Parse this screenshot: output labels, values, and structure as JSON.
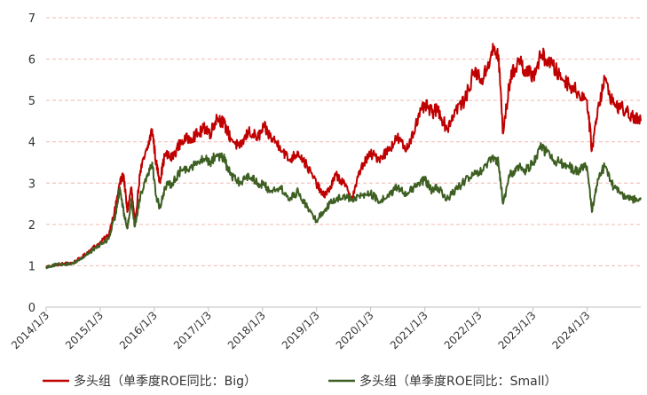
{
  "chart_data": {
    "type": "line",
    "title": "",
    "xlabel": "",
    "ylabel": "",
    "ylim": [
      0,
      7
    ],
    "yticks": [
      0,
      1,
      2,
      3,
      4,
      5,
      6,
      7
    ],
    "x_range": [
      "2014-01-03",
      "2024-12-31"
    ],
    "x_ticks": [
      "2014/1/3",
      "2015/1/3",
      "2016/1/3",
      "2017/1/3",
      "2018/1/3",
      "2019/1/3",
      "2020/1/3",
      "2021/1/3",
      "2022/1/3",
      "2023/1/3",
      "2024/1/3"
    ],
    "grid": "horizontal dashed",
    "legend_position": "bottom",
    "series": [
      {
        "name": "多头组（单季度ROE同比：Big）",
        "color": "#c00000",
        "points": [
          [
            "2014-01-03",
            0.97
          ],
          [
            "2014-03-01",
            1.02
          ],
          [
            "2014-05-01",
            1.05
          ],
          [
            "2014-07-01",
            1.07
          ],
          [
            "2014-09-01",
            1.2
          ],
          [
            "2014-11-01",
            1.4
          ],
          [
            "2015-01-01",
            1.55
          ],
          [
            "2015-03-01",
            1.75
          ],
          [
            "2015-04-15",
            2.4
          ],
          [
            "2015-05-15",
            3.0
          ],
          [
            "2015-06-10",
            3.2
          ],
          [
            "2015-07-05",
            2.3
          ],
          [
            "2015-08-01",
            2.9
          ],
          [
            "2015-08-25",
            2.0
          ],
          [
            "2015-10-01",
            3.3
          ],
          [
            "2015-11-15",
            3.8
          ],
          [
            "2015-12-20",
            4.3
          ],
          [
            "2016-01-15",
            3.5
          ],
          [
            "2016-02-10",
            3.05
          ],
          [
            "2016-03-15",
            3.7
          ],
          [
            "2016-05-01",
            3.6
          ],
          [
            "2016-07-01",
            4.0
          ],
          [
            "2016-09-01",
            4.1
          ],
          [
            "2016-11-01",
            4.2
          ],
          [
            "2016-12-15",
            4.35
          ],
          [
            "2017-01-15",
            4.2
          ],
          [
            "2017-03-01",
            4.6
          ],
          [
            "2017-04-15",
            4.45
          ],
          [
            "2017-06-01",
            4.1
          ],
          [
            "2017-08-01",
            3.85
          ],
          [
            "2017-10-01",
            4.25
          ],
          [
            "2017-12-01",
            4.1
          ],
          [
            "2018-01-15",
            4.35
          ],
          [
            "2018-03-01",
            4.1
          ],
          [
            "2018-05-01",
            3.9
          ],
          [
            "2018-07-01",
            3.55
          ],
          [
            "2018-09-01",
            3.75
          ],
          [
            "2018-11-01",
            3.4
          ],
          [
            "2019-01-01",
            3.0
          ],
          [
            "2019-02-15",
            2.7
          ],
          [
            "2019-04-01",
            2.85
          ],
          [
            "2019-05-15",
            3.2
          ],
          [
            "2019-07-01",
            3.0
          ],
          [
            "2019-09-01",
            2.65
          ],
          [
            "2019-11-01",
            3.4
          ],
          [
            "2020-01-03",
            3.7
          ],
          [
            "2020-03-01",
            3.6
          ],
          [
            "2020-05-01",
            3.8
          ],
          [
            "2020-07-01",
            4.1
          ],
          [
            "2020-09-01",
            3.8
          ],
          [
            "2020-11-01",
            4.4
          ],
          [
            "2021-01-03",
            4.9
          ],
          [
            "2021-02-20",
            4.7
          ],
          [
            "2021-04-01",
            4.8
          ],
          [
            "2021-06-01",
            4.3
          ],
          [
            "2021-08-01",
            4.8
          ],
          [
            "2021-10-01",
            5.0
          ],
          [
            "2021-12-01",
            5.7
          ],
          [
            "2022-02-01",
            5.5
          ],
          [
            "2022-04-01",
            6.2
          ],
          [
            "2022-05-15",
            6.1
          ],
          [
            "2022-06-15",
            4.2
          ],
          [
            "2022-08-01",
            5.5
          ],
          [
            "2022-10-01",
            6.0
          ],
          [
            "2022-11-15",
            5.7
          ],
          [
            "2023-01-03",
            5.6
          ],
          [
            "2023-03-01",
            6.1
          ],
          [
            "2023-05-01",
            5.9
          ],
          [
            "2023-07-01",
            5.6
          ],
          [
            "2023-09-01",
            5.4
          ],
          [
            "2023-11-01",
            5.2
          ],
          [
            "2024-01-03",
            5.0
          ],
          [
            "2024-02-05",
            3.8
          ],
          [
            "2024-03-15",
            4.8
          ],
          [
            "2024-05-01",
            5.5
          ],
          [
            "2024-07-01",
            4.9
          ],
          [
            "2024-09-01",
            4.8
          ],
          [
            "2024-11-01",
            4.6
          ],
          [
            "2024-12-31",
            4.5
          ]
        ]
      },
      {
        "name": "多头组（单季度ROE同比：Small）",
        "color": "#3d5f22",
        "points": [
          [
            "2014-01-03",
            0.97
          ],
          [
            "2014-03-01",
            1.02
          ],
          [
            "2014-05-01",
            1.04
          ],
          [
            "2014-07-01",
            1.06
          ],
          [
            "2014-09-01",
            1.18
          ],
          [
            "2014-11-01",
            1.35
          ],
          [
            "2015-01-01",
            1.5
          ],
          [
            "2015-03-01",
            1.65
          ],
          [
            "2015-04-15",
            2.2
          ],
          [
            "2015-05-15",
            2.9
          ],
          [
            "2015-06-10",
            2.3
          ],
          [
            "2015-07-05",
            1.9
          ],
          [
            "2015-08-01",
            2.6
          ],
          [
            "2015-08-25",
            1.95
          ],
          [
            "2015-10-01",
            2.7
          ],
          [
            "2015-11-15",
            3.2
          ],
          [
            "2015-12-20",
            3.5
          ],
          [
            "2016-01-15",
            2.7
          ],
          [
            "2016-02-10",
            2.4
          ],
          [
            "2016-03-15",
            2.9
          ],
          [
            "2016-05-01",
            3.0
          ],
          [
            "2016-07-01",
            3.3
          ],
          [
            "2016-09-01",
            3.4
          ],
          [
            "2016-11-01",
            3.5
          ],
          [
            "2016-12-15",
            3.6
          ],
          [
            "2017-01-15",
            3.5
          ],
          [
            "2017-03-01",
            3.7
          ],
          [
            "2017-04-15",
            3.6
          ],
          [
            "2017-06-01",
            3.2
          ],
          [
            "2017-08-01",
            3.0
          ],
          [
            "2017-10-01",
            3.2
          ],
          [
            "2017-12-01",
            3.0
          ],
          [
            "2018-01-15",
            2.95
          ],
          [
            "2018-03-01",
            2.8
          ],
          [
            "2018-05-01",
            2.9
          ],
          [
            "2018-07-01",
            2.6
          ],
          [
            "2018-09-01",
            2.8
          ],
          [
            "2018-11-01",
            2.4
          ],
          [
            "2019-01-01",
            2.1
          ],
          [
            "2019-02-15",
            2.3
          ],
          [
            "2019-04-01",
            2.5
          ],
          [
            "2019-05-15",
            2.6
          ],
          [
            "2019-07-01",
            2.7
          ],
          [
            "2019-09-01",
            2.6
          ],
          [
            "2019-11-01",
            2.7
          ],
          [
            "2020-01-03",
            2.75
          ],
          [
            "2020-03-01",
            2.55
          ],
          [
            "2020-05-01",
            2.7
          ],
          [
            "2020-07-01",
            2.9
          ],
          [
            "2020-09-01",
            2.75
          ],
          [
            "2020-11-01",
            2.9
          ],
          [
            "2021-01-03",
            3.1
          ],
          [
            "2021-02-20",
            2.8
          ],
          [
            "2021-04-01",
            2.9
          ],
          [
            "2021-06-01",
            2.6
          ],
          [
            "2021-08-01",
            2.85
          ],
          [
            "2021-10-01",
            3.05
          ],
          [
            "2021-12-01",
            3.2
          ],
          [
            "2022-02-01",
            3.3
          ],
          [
            "2022-04-01",
            3.6
          ],
          [
            "2022-05-15",
            3.5
          ],
          [
            "2022-06-15",
            2.5
          ],
          [
            "2022-08-01",
            3.2
          ],
          [
            "2022-10-01",
            3.4
          ],
          [
            "2022-11-15",
            3.3
          ],
          [
            "2023-01-03",
            3.5
          ],
          [
            "2023-03-01",
            3.9
          ],
          [
            "2023-05-01",
            3.6
          ],
          [
            "2023-07-01",
            3.5
          ],
          [
            "2023-09-01",
            3.4
          ],
          [
            "2023-11-01",
            3.3
          ],
          [
            "2024-01-03",
            3.4
          ],
          [
            "2024-02-05",
            2.3
          ],
          [
            "2024-03-15",
            3.1
          ],
          [
            "2024-05-01",
            3.4
          ],
          [
            "2024-07-01",
            2.9
          ],
          [
            "2024-09-01",
            2.7
          ],
          [
            "2024-11-01",
            2.6
          ],
          [
            "2024-12-31",
            2.65
          ]
        ]
      }
    ]
  }
}
